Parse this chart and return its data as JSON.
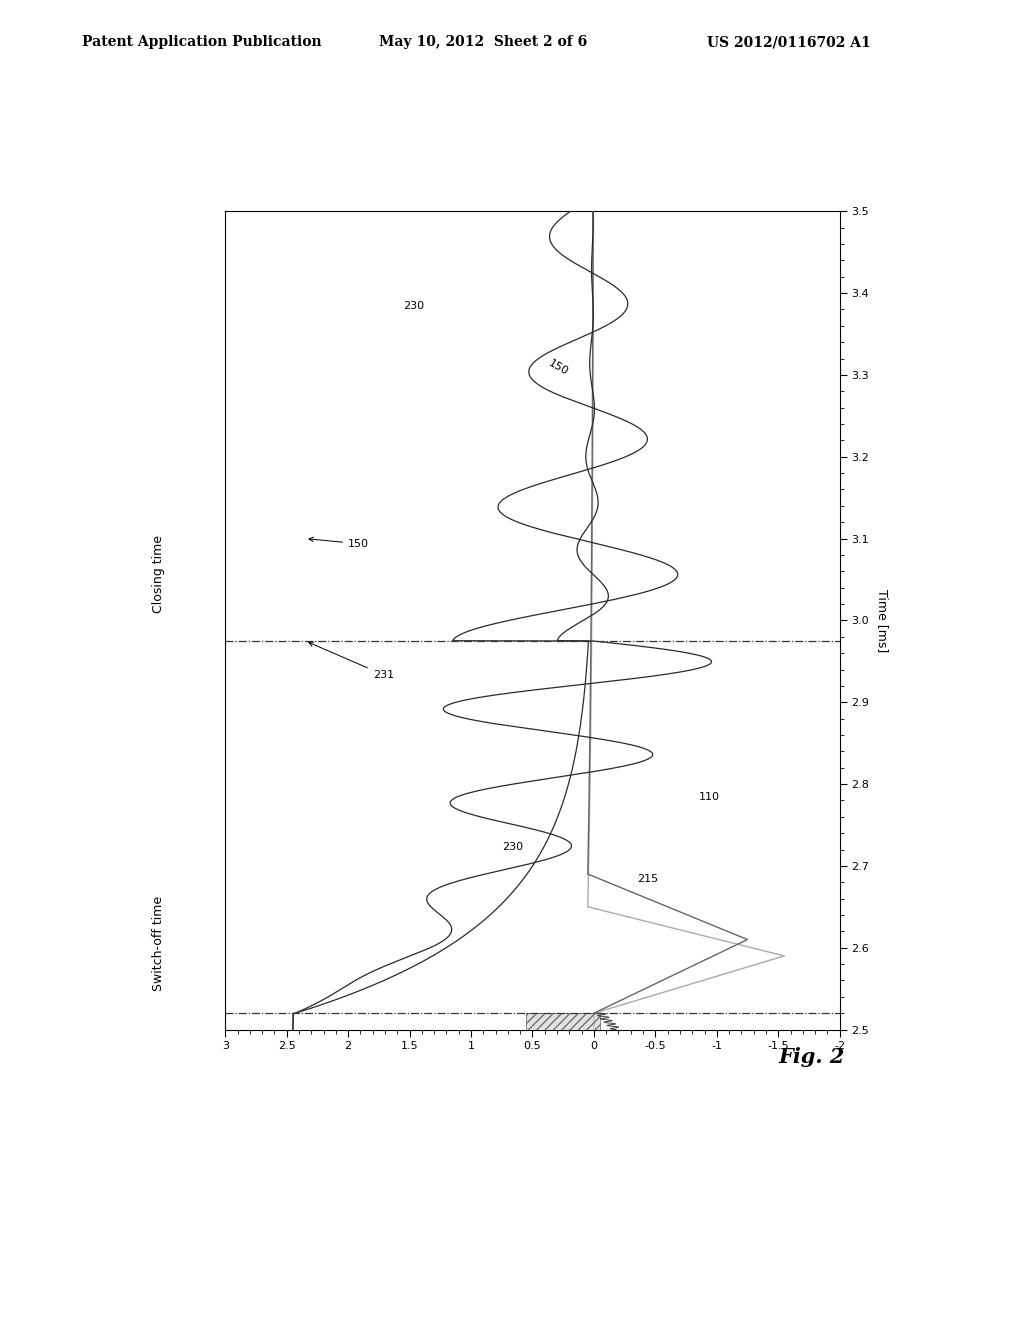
{
  "header_left": "Patent Application Publication",
  "header_center": "May 10, 2012  Sheet 2 of 6",
  "header_right": "US 2012/0116702 A1",
  "fig_label": "Fig. 2",
  "time_label": "Time [ms]",
  "switch_off_time": 2.52,
  "closing_time": 2.975,
  "background_color": "#ffffff",
  "curve_color_dark": "#2a2a2a",
  "curve_color_mid": "#666666",
  "curve_color_light": "#aaaaaa",
  "closing_time_label": "Closing time",
  "switch_off_label": "Switch-off time",
  "label_150_upper": "150",
  "label_230_upper": "230",
  "label_231": "231",
  "label_150_lower": "150",
  "label_230_lower": "230",
  "label_215": "215",
  "label_110": "110",
  "xlim_left": 3.0,
  "xlim_right": -2.0,
  "ylim_bottom": 2.5,
  "ylim_top": 3.5
}
